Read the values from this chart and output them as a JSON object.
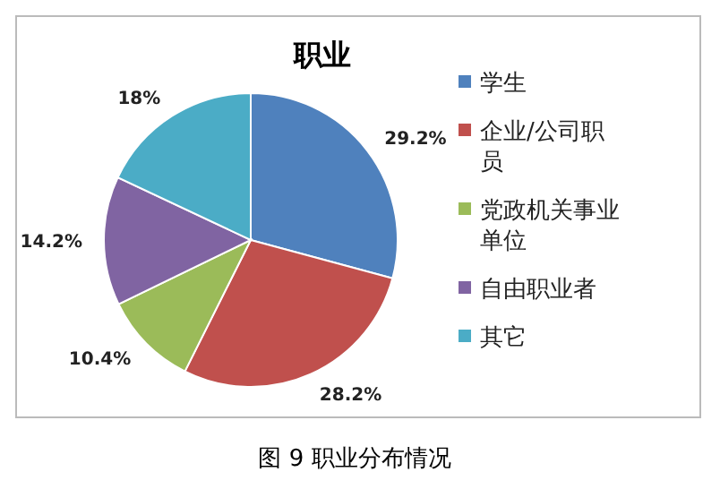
{
  "chart_data": {
    "type": "pie",
    "title": "职业",
    "categories": [
      "学生",
      "企业/公司职员",
      "党政机关事业单位",
      "自由职业者",
      "其它"
    ],
    "values": [
      29.2,
      28.2,
      10.4,
      14.2,
      18
    ],
    "colors": [
      "#4f81bd",
      "#c0504d",
      "#9bbb59",
      "#8064a2",
      "#4bacc6"
    ],
    "value_labels": [
      "29.2%",
      "28.2%",
      "10.4%",
      "14.2%",
      "18%"
    ],
    "legend": "right",
    "annotations": [
      "图 9 职业分布情况"
    ]
  }
}
